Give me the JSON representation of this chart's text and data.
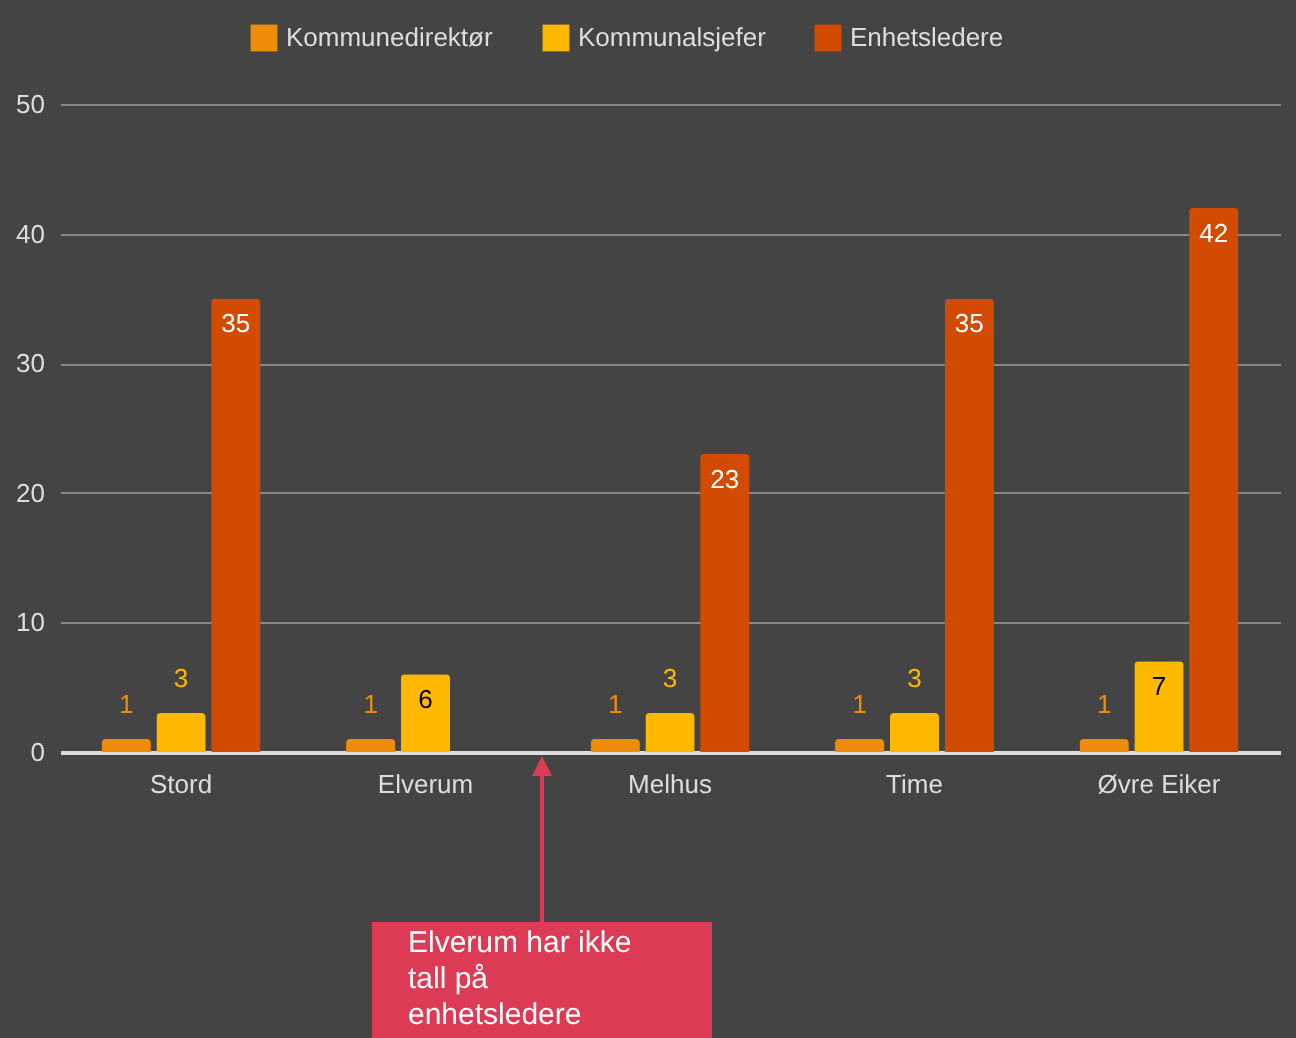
{
  "chart_data": {
    "type": "bar",
    "categories": [
      "Stord",
      "Elverum",
      "Melhus",
      "Time",
      "Øvre Eiker"
    ],
    "series": [
      {
        "name": "Kommunedirektør",
        "color": "#ee8c0a",
        "values": [
          1,
          1,
          1,
          1,
          1
        ]
      },
      {
        "name": "Kommunalsjefer",
        "color": "#ffb800",
        "values": [
          3,
          6,
          3,
          3,
          7
        ]
      },
      {
        "name": "Enhetsledere",
        "color": "#d24b00",
        "values": [
          35,
          null,
          23,
          35,
          42
        ]
      }
    ],
    "ylim": [
      0,
      50
    ],
    "yticks": [
      0,
      10,
      20,
      30,
      40,
      50
    ],
    "grid": "y",
    "legend": "top",
    "data_labels": true,
    "annotations": [
      "Elverum har ikke tall på enhetsledere"
    ]
  }
}
